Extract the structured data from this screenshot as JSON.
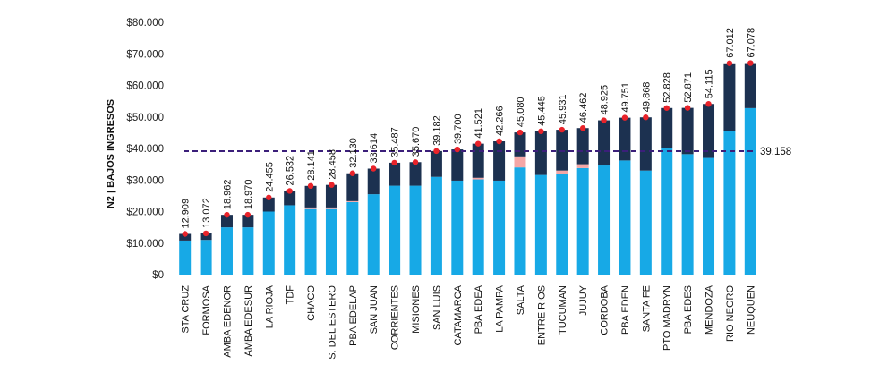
{
  "chart_data": {
    "type": "bar",
    "ylabel": "N2 | BAJOS INGRESOS",
    "ylim": [
      0,
      80000
    ],
    "yticks": [
      0,
      10000,
      20000,
      30000,
      40000,
      50000,
      60000,
      70000,
      80000
    ],
    "ytick_labels": [
      "$0",
      "$10.000",
      "$20.000",
      "$30.000",
      "$40.000",
      "$50.000",
      "$60.000",
      "$70.000",
      "$80.000"
    ],
    "categories": [
      "STA CRUZ",
      "FORMOSA",
      "AMBA EDENOR",
      "AMBA EDESUR",
      "LA RIOJA",
      "TDF",
      "CHACO",
      "S. DEL ESTERO",
      "PBA EDELAP",
      "SAN JUAN",
      "CORRIENTES",
      "MISIONES",
      "SAN LUIS",
      "CATAMARCA",
      "PBA EDEA",
      "LA PAMPA",
      "SALTA",
      "ENTRE RIOS",
      "TUCUMAN",
      "JUJUY",
      "CORDOBA",
      "PBA EDEN",
      "SANTA FE",
      "PTO MADRYN",
      "PBA EDES",
      "MENDOZA",
      "RIO NEGRO",
      "NEUQUEN"
    ],
    "totals": [
      12909,
      13072,
      18962,
      18970,
      24455,
      26532,
      28141,
      28458,
      32130,
      33614,
      35487,
      35670,
      39182,
      39700,
      41521,
      42266,
      45080,
      45445,
      45931,
      46462,
      48925,
      49751,
      49868,
      52828,
      52871,
      54115,
      67012,
      67078
    ],
    "total_labels": [
      "12.909",
      "13.072",
      "18.962",
      "18.970",
      "24.455",
      "26.532",
      "28.141",
      "28.458",
      "32.130",
      "33.614",
      "35.487",
      "35.670",
      "39.182",
      "39.700",
      "41.521",
      "42.266",
      "45.080",
      "45.445",
      "45.931",
      "46.462",
      "48.925",
      "49.751",
      "49.868",
      "52.828",
      "52.871",
      "54.115",
      "67.012",
      "67.078"
    ],
    "series": [
      {
        "color": "#17a9e6",
        "values": [
          10800,
          11000,
          15000,
          15000,
          20000,
          22000,
          20800,
          20800,
          23000,
          25500,
          28200,
          28200,
          31000,
          29800,
          30200,
          29800,
          34000,
          31600,
          32000,
          33800,
          34600,
          36200,
          33000,
          40200,
          38200,
          37000,
          45500,
          52800
        ]
      },
      {
        "color": "#f4a6a6",
        "values": [
          0,
          0,
          0,
          0,
          0,
          0,
          500,
          500,
          300,
          0,
          0,
          0,
          0,
          0,
          500,
          0,
          3500,
          0,
          1000,
          1200,
          0,
          0,
          0,
          0,
          0,
          0,
          0,
          0
        ]
      },
      {
        "color": "#1c3150",
        "values": [
          2109,
          2072,
          3962,
          3970,
          4455,
          4532,
          6841,
          7158,
          8830,
          8114,
          7287,
          7470,
          8182,
          9900,
          10821,
          12466,
          7580,
          13845,
          12931,
          11462,
          14325,
          13551,
          16868,
          12628,
          14671,
          17115,
          21512,
          14278
        ]
      }
    ],
    "reference_line": {
      "value": 39158,
      "label": "39.158",
      "style": "dashed",
      "color": "#3b1f7a"
    },
    "marker_color": "#e8232a"
  }
}
